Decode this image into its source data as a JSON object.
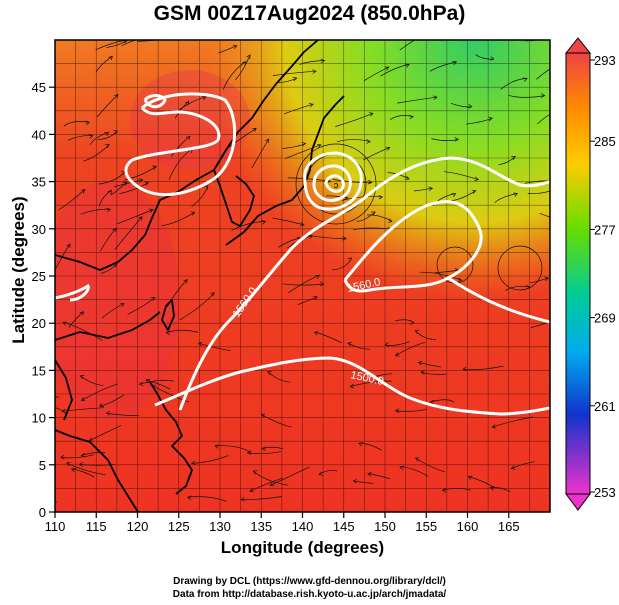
{
  "title": "GSM 00Z17Aug2024 (850.0hPa)",
  "axes": {
    "xlabel": "Longitude (degrees)",
    "ylabel": "Latitude  (degrees)",
    "xticks": [
      110,
      115,
      120,
      125,
      130,
      135,
      140,
      145,
      150,
      155,
      160,
      165
    ],
    "yticks": [
      0,
      5,
      10,
      15,
      20,
      25,
      30,
      35,
      40,
      45
    ],
    "xlim": [
      110,
      170
    ],
    "ylim": [
      0,
      50
    ]
  },
  "colorbar": {
    "ticks": [
      "293",
      "285",
      "277",
      "269",
      "261",
      "253"
    ],
    "range": [
      253,
      293
    ]
  },
  "contour_labels": [
    "1560.0",
    "1560.0",
    "1500.0"
  ],
  "credits": {
    "line1": "Drawing by DCL (https://www.gfd-dennou.org/library/dcl/)",
    "line2": "Data from http://database.rish.kyoto-u.ac.jp/arch/jmadata/"
  },
  "colors": {
    "warm": "#ee3322",
    "cool": "#44cc33",
    "contour": "#ffffff",
    "coast": "#000000"
  }
}
